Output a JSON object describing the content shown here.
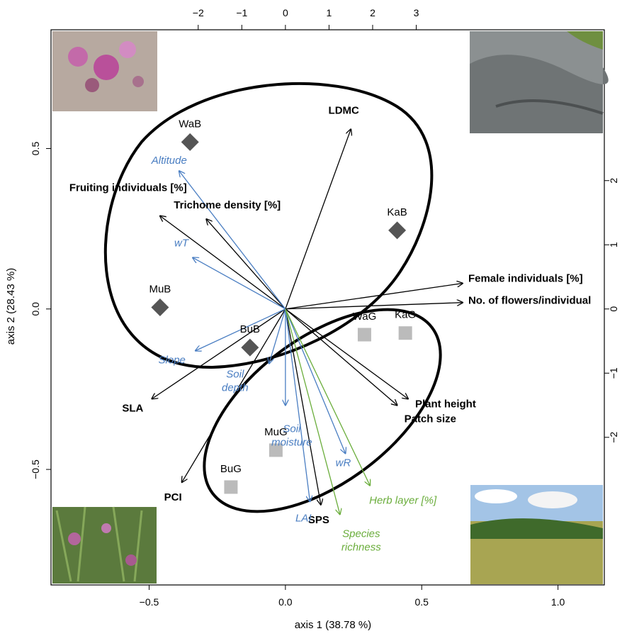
{
  "chart_data": {
    "type": "biplot",
    "xlabel": "axis 1 (38.78 %)",
    "ylabel": "axis 2 (28.43 %)",
    "xlim": [
      -0.86,
      1.17
    ],
    "ylim": [
      -0.86,
      0.87
    ],
    "bottom_ticks": [
      "−0.5",
      "0.0",
      "0.5",
      "1.0"
    ],
    "bottom_tick_values": [
      -0.5,
      0.0,
      0.5,
      1.0
    ],
    "left_ticks": [
      "−0.5",
      "0.0",
      "0.5"
    ],
    "left_tick_values": [
      -0.5,
      0.0,
      0.5
    ],
    "top_ticks": [
      "−2",
      "−1",
      "0",
      "1",
      "2",
      "3"
    ],
    "top_tick_values": [
      -2,
      -1,
      0,
      1,
      2,
      3
    ],
    "right_ticks": [
      "2",
      "1",
      "0",
      "−1",
      "−2"
    ],
    "right_tick_values": [
      2,
      1,
      0,
      -1,
      -2
    ],
    "top_axis_scale": 0.16,
    "right_axis_scale": 0.2,
    "site_series": [
      {
        "group": "B",
        "color": "#555555",
        "marker": "diamond",
        "points": [
          {
            "label": "WaB",
            "x": -0.35,
            "y": 0.52
          },
          {
            "label": "KaB",
            "x": 0.41,
            "y": 0.245
          },
          {
            "label": "MuB",
            "x": -0.46,
            "y": 0.005
          },
          {
            "label": "BuB",
            "x": -0.13,
            "y": -0.12
          }
        ]
      },
      {
        "group": "G",
        "color": "#bbbbbb",
        "marker": "square",
        "points": [
          {
            "label": "WaG",
            "x": 0.29,
            "y": -0.08
          },
          {
            "label": "KaG",
            "x": 0.44,
            "y": -0.075
          },
          {
            "label": "MuG",
            "x": -0.035,
            "y": -0.44
          },
          {
            "label": "BuG",
            "x": -0.2,
            "y": -0.555
          }
        ]
      }
    ],
    "trait_vectors": [
      {
        "label": "LDMC",
        "x": 0.24,
        "y": 0.56
      },
      {
        "label": "Fruiting individuals [%]",
        "x": -0.46,
        "y": 0.29
      },
      {
        "label": "Trichome density [%]",
        "x": -0.29,
        "y": 0.28
      },
      {
        "label": "Female individuals [%]",
        "x": 0.65,
        "y": 0.08
      },
      {
        "label": "No. of flowers/individual",
        "x": 0.65,
        "y": 0.02
      },
      {
        "label": "SLA",
        "x": -0.49,
        "y": -0.28
      },
      {
        "label": "Plant height",
        "x": 0.45,
        "y": -0.28
      },
      {
        "label": "Patch size",
        "x": 0.41,
        "y": -0.3
      },
      {
        "label": "PCI",
        "x": -0.38,
        "y": -0.54
      },
      {
        "label": "SPS",
        "x": 0.13,
        "y": -0.61
      }
    ],
    "environment_vectors": [
      {
        "label": "Altitude",
        "x": -0.39,
        "y": 0.43
      },
      {
        "label": "wT",
        "x": -0.34,
        "y": 0.16
      },
      {
        "label": "Slope",
        "x": -0.33,
        "y": -0.13
      },
      {
        "label": "Soil depth",
        "x": -0.06,
        "y": -0.17
      },
      {
        "label": "Soil moisture",
        "x": 0.0,
        "y": -0.3
      },
      {
        "label": "LAI",
        "x": 0.09,
        "y": -0.6
      },
      {
        "label": "wR",
        "x": 0.22,
        "y": -0.45
      }
    ],
    "species_vectors": [
      {
        "label": "Herb layer [%]",
        "x": 0.31,
        "y": -0.55
      },
      {
        "label": "Species richness",
        "x": 0.2,
        "y": -0.64
      }
    ],
    "colors": {
      "trait": "#000000",
      "environment": "#4a7ec2",
      "species": "#6aad3b",
      "ellipse": "#000000"
    }
  }
}
